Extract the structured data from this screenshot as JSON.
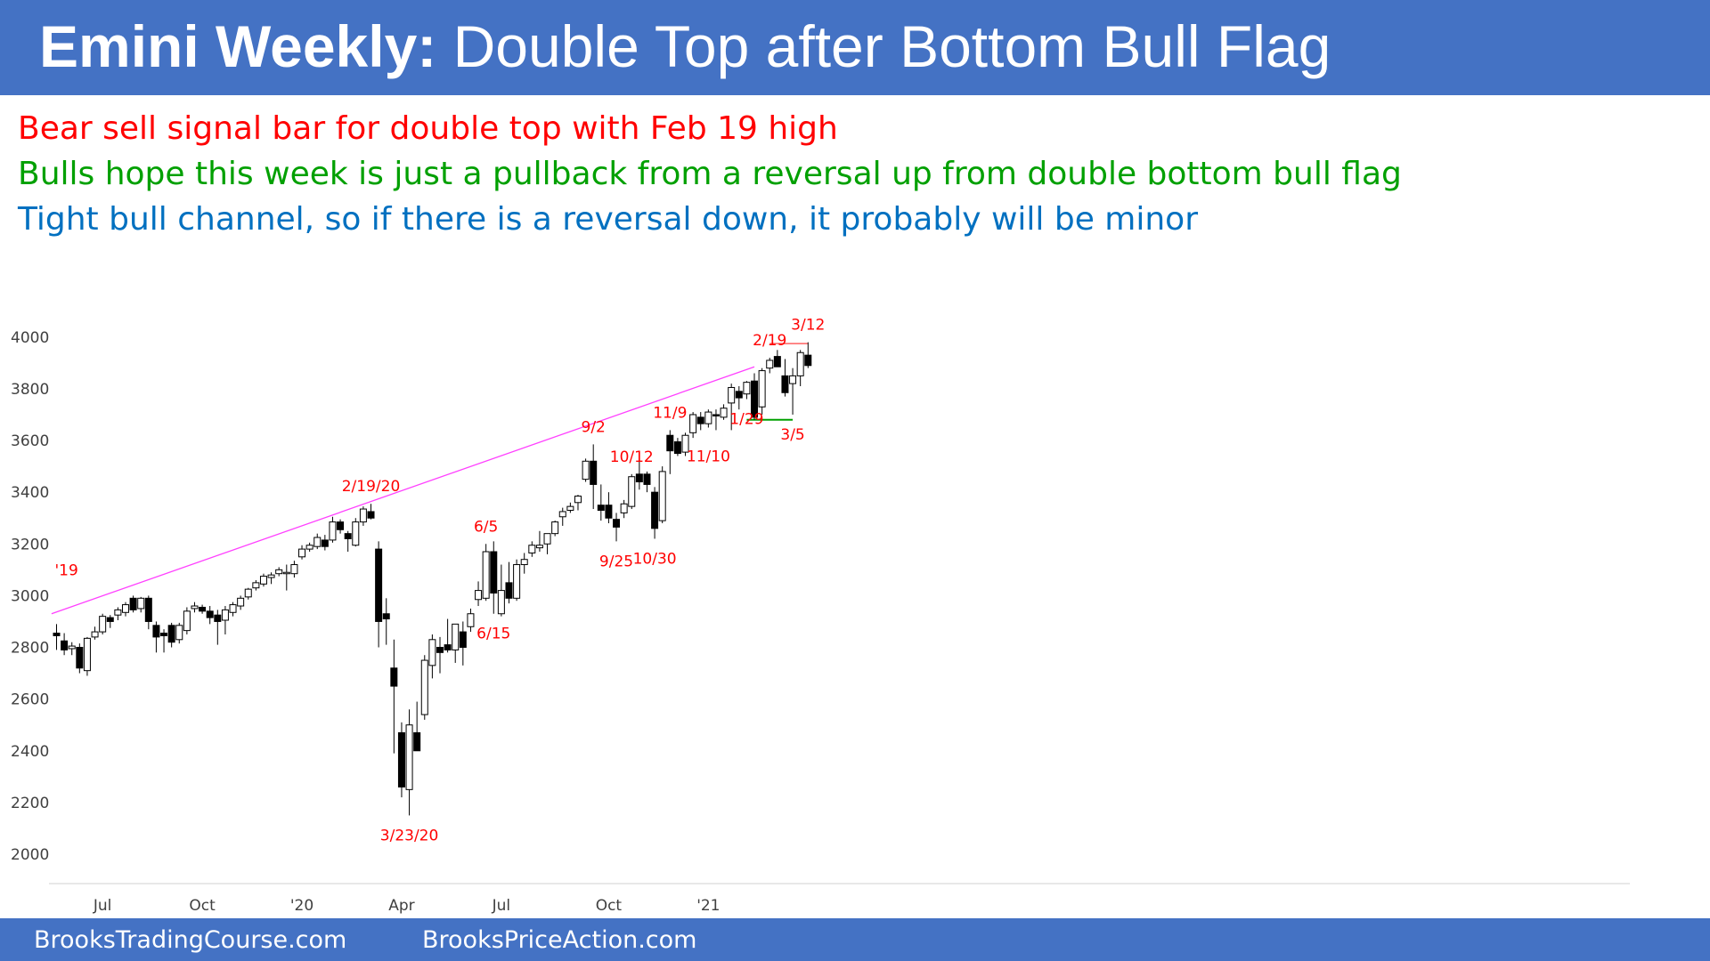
{
  "header": {
    "title_bold": "Emini Weekly:",
    "title_rest": "Double Top after Bottom Bull Flag",
    "bg_color": "#4472c4"
  },
  "notes": [
    {
      "text": "Bear sell signal bar for double top with Feb 19 high",
      "color": "#ff0000"
    },
    {
      "text": "Bulls hope this week is just a pullback from a reversal up from double bottom bull flag",
      "color": "#00a000"
    },
    {
      "text": "Tight bull channel, so if there is a reversal down, it probably will be minor",
      "color": "#0070c0"
    }
  ],
  "footer": {
    "left": "BrooksTradingCourse.com",
    "right": "BrooksPriceAction.com"
  },
  "chart_data": {
    "type": "candlestick",
    "title": "Emini Weekly",
    "xlabel": "",
    "ylabel": "",
    "ylim": [
      1950,
      4050
    ],
    "yticks": [
      2000,
      2200,
      2400,
      2600,
      2800,
      3000,
      3200,
      3400,
      3600,
      3800,
      4000
    ],
    "xticks": [
      {
        "label": "Jul",
        "bar": 6
      },
      {
        "label": "Oct",
        "bar": 19
      },
      {
        "label": "'20",
        "bar": 32
      },
      {
        "label": "Apr",
        "bar": 45
      },
      {
        "label": "Jul",
        "bar": 58
      },
      {
        "label": "Oct",
        "bar": 72
      },
      {
        "label": "'21",
        "bar": 85
      }
    ],
    "bars": [
      {
        "o": 2855,
        "h": 2890,
        "l": 2790,
        "c": 2845
      },
      {
        "o": 2825,
        "h": 2855,
        "l": 2770,
        "c": 2790
      },
      {
        "o": 2795,
        "h": 2820,
        "l": 2770,
        "c": 2805
      },
      {
        "o": 2800,
        "h": 2815,
        "l": 2700,
        "c": 2720
      },
      {
        "o": 2710,
        "h": 2840,
        "l": 2690,
        "c": 2835
      },
      {
        "o": 2840,
        "h": 2880,
        "l": 2830,
        "c": 2860
      },
      {
        "o": 2860,
        "h": 2930,
        "l": 2850,
        "c": 2920
      },
      {
        "o": 2915,
        "h": 2925,
        "l": 2875,
        "c": 2900
      },
      {
        "o": 2925,
        "h": 2955,
        "l": 2905,
        "c": 2945
      },
      {
        "o": 2935,
        "h": 2975,
        "l": 2920,
        "c": 2965
      },
      {
        "o": 2990,
        "h": 3000,
        "l": 2935,
        "c": 2945
      },
      {
        "o": 2950,
        "h": 2995,
        "l": 2935,
        "c": 2990
      },
      {
        "o": 2990,
        "h": 3000,
        "l": 2870,
        "c": 2900
      },
      {
        "o": 2885,
        "h": 2900,
        "l": 2780,
        "c": 2840
      },
      {
        "o": 2855,
        "h": 2870,
        "l": 2780,
        "c": 2845
      },
      {
        "o": 2885,
        "h": 2895,
        "l": 2800,
        "c": 2820
      },
      {
        "o": 2830,
        "h": 2895,
        "l": 2815,
        "c": 2885
      },
      {
        "o": 2865,
        "h": 2955,
        "l": 2850,
        "c": 2940
      },
      {
        "o": 2950,
        "h": 2975,
        "l": 2935,
        "c": 2960
      },
      {
        "o": 2955,
        "h": 2965,
        "l": 2930,
        "c": 2940
      },
      {
        "o": 2940,
        "h": 2960,
        "l": 2890,
        "c": 2915
      },
      {
        "o": 2925,
        "h": 2945,
        "l": 2810,
        "c": 2900
      },
      {
        "o": 2905,
        "h": 2960,
        "l": 2850,
        "c": 2945
      },
      {
        "o": 2935,
        "h": 2975,
        "l": 2920,
        "c": 2965
      },
      {
        "o": 2960,
        "h": 3000,
        "l": 2945,
        "c": 2990
      },
      {
        "o": 2995,
        "h": 3030,
        "l": 2985,
        "c": 3025
      },
      {
        "o": 3030,
        "h": 3060,
        "l": 3020,
        "c": 3050
      },
      {
        "o": 3045,
        "h": 3085,
        "l": 3035,
        "c": 3075
      },
      {
        "o": 3070,
        "h": 3090,
        "l": 3045,
        "c": 3080
      },
      {
        "o": 3085,
        "h": 3110,
        "l": 3075,
        "c": 3100
      },
      {
        "o": 3085,
        "h": 3120,
        "l": 3020,
        "c": 3090
      },
      {
        "o": 3085,
        "h": 3135,
        "l": 3070,
        "c": 3120
      },
      {
        "o": 3150,
        "h": 3195,
        "l": 3140,
        "c": 3180
      },
      {
        "o": 3180,
        "h": 3205,
        "l": 3170,
        "c": 3195
      },
      {
        "o": 3190,
        "h": 3240,
        "l": 3180,
        "c": 3225
      },
      {
        "o": 3215,
        "h": 3235,
        "l": 3175,
        "c": 3190
      },
      {
        "o": 3215,
        "h": 3305,
        "l": 3205,
        "c": 3285
      },
      {
        "o": 3285,
        "h": 3295,
        "l": 3240,
        "c": 3255
      },
      {
        "o": 3240,
        "h": 3250,
        "l": 3170,
        "c": 3220
      },
      {
        "o": 3195,
        "h": 3300,
        "l": 3190,
        "c": 3285
      },
      {
        "o": 3285,
        "h": 3345,
        "l": 3270,
        "c": 3335
      },
      {
        "o": 3325,
        "h": 3355,
        "l": 3295,
        "c": 3300
      },
      {
        "o": 3180,
        "h": 3210,
        "l": 2800,
        "c": 2900
      },
      {
        "o": 2930,
        "h": 2990,
        "l": 2810,
        "c": 2910
      },
      {
        "o": 2720,
        "h": 2830,
        "l": 2390,
        "c": 2650
      },
      {
        "o": 2470,
        "h": 2510,
        "l": 2220,
        "c": 2260
      },
      {
        "o": 2250,
        "h": 2560,
        "l": 2150,
        "c": 2500
      },
      {
        "o": 2470,
        "h": 2590,
        "l": 2400,
        "c": 2400
      },
      {
        "o": 2540,
        "h": 2770,
        "l": 2520,
        "c": 2750
      },
      {
        "o": 2730,
        "h": 2850,
        "l": 2680,
        "c": 2830
      },
      {
        "o": 2800,
        "h": 2840,
        "l": 2700,
        "c": 2780
      },
      {
        "o": 2810,
        "h": 2910,
        "l": 2780,
        "c": 2790
      },
      {
        "o": 2790,
        "h": 2880,
        "l": 2740,
        "c": 2890
      },
      {
        "o": 2860,
        "h": 2900,
        "l": 2730,
        "c": 2800
      },
      {
        "o": 2880,
        "h": 2950,
        "l": 2860,
        "c": 2930
      },
      {
        "o": 2985,
        "h": 3055,
        "l": 2960,
        "c": 3020
      },
      {
        "o": 2990,
        "h": 3200,
        "l": 2980,
        "c": 3170
      },
      {
        "o": 3170,
        "h": 3210,
        "l": 2930,
        "c": 3010
      },
      {
        "o": 2930,
        "h": 3120,
        "l": 2920,
        "c": 3020
      },
      {
        "o": 3050,
        "h": 3130,
        "l": 2970,
        "c": 2990
      },
      {
        "o": 2990,
        "h": 3140,
        "l": 2980,
        "c": 3120
      },
      {
        "o": 3120,
        "h": 3165,
        "l": 3085,
        "c": 3140
      },
      {
        "o": 3165,
        "h": 3210,
        "l": 3150,
        "c": 3195
      },
      {
        "o": 3185,
        "h": 3250,
        "l": 3170,
        "c": 3195
      },
      {
        "o": 3200,
        "h": 3235,
        "l": 3160,
        "c": 3240
      },
      {
        "o": 3240,
        "h": 3290,
        "l": 3230,
        "c": 3285
      },
      {
        "o": 3305,
        "h": 3340,
        "l": 3270,
        "c": 3325
      },
      {
        "o": 3330,
        "h": 3360,
        "l": 3320,
        "c": 3345
      },
      {
        "o": 3360,
        "h": 3390,
        "l": 3330,
        "c": 3385
      },
      {
        "o": 3450,
        "h": 3530,
        "l": 3440,
        "c": 3520
      },
      {
        "o": 3520,
        "h": 3585,
        "l": 3335,
        "c": 3430
      },
      {
        "o": 3350,
        "h": 3430,
        "l": 3290,
        "c": 3330
      },
      {
        "o": 3350,
        "h": 3400,
        "l": 3280,
        "c": 3300
      },
      {
        "o": 3295,
        "h": 3320,
        "l": 3210,
        "c": 3265
      },
      {
        "o": 3320,
        "h": 3370,
        "l": 3300,
        "c": 3355
      },
      {
        "o": 3345,
        "h": 3470,
        "l": 3335,
        "c": 3460
      },
      {
        "o": 3470,
        "h": 3540,
        "l": 3410,
        "c": 3440
      },
      {
        "o": 3470,
        "h": 3480,
        "l": 3400,
        "c": 3430
      },
      {
        "o": 3400,
        "h": 3420,
        "l": 3220,
        "c": 3260
      },
      {
        "o": 3290,
        "h": 3500,
        "l": 3280,
        "c": 3480
      },
      {
        "o": 3620,
        "h": 3640,
        "l": 3470,
        "c": 3560
      },
      {
        "o": 3595,
        "h": 3610,
        "l": 3540,
        "c": 3550
      },
      {
        "o": 3555,
        "h": 3630,
        "l": 3540,
        "c": 3620
      },
      {
        "o": 3630,
        "h": 3710,
        "l": 3610,
        "c": 3700
      },
      {
        "o": 3690,
        "h": 3710,
        "l": 3640,
        "c": 3665
      },
      {
        "o": 3665,
        "h": 3720,
        "l": 3650,
        "c": 3710
      },
      {
        "o": 3700,
        "h": 3720,
        "l": 3640,
        "c": 3695
      },
      {
        "o": 3690,
        "h": 3740,
        "l": 3680,
        "c": 3725
      },
      {
        "o": 3745,
        "h": 3820,
        "l": 3640,
        "c": 3805
      },
      {
        "o": 3790,
        "h": 3810,
        "l": 3720,
        "c": 3765
      },
      {
        "o": 3780,
        "h": 3830,
        "l": 3760,
        "c": 3825
      },
      {
        "o": 3830,
        "h": 3860,
        "l": 3680,
        "c": 3690
      },
      {
        "o": 3730,
        "h": 3880,
        "l": 3700,
        "c": 3870
      },
      {
        "o": 3880,
        "h": 3920,
        "l": 3860,
        "c": 3910
      },
      {
        "o": 3925,
        "h": 3950,
        "l": 3890,
        "c": 3885
      },
      {
        "o": 3850,
        "h": 3915,
        "l": 3770,
        "c": 3785
      },
      {
        "o": 3820,
        "h": 3880,
        "l": 3700,
        "c": 3850
      },
      {
        "o": 3850,
        "h": 3950,
        "l": 3810,
        "c": 3940
      },
      {
        "o": 3930,
        "h": 3980,
        "l": 3880,
        "c": 3890
      }
    ],
    "annotations": [
      {
        "label": "'19",
        "bar": 0,
        "pos": "above-left"
      },
      {
        "label": "2/19/20",
        "bar": 41,
        "pos": "above"
      },
      {
        "label": "3/23/20",
        "bar": 46,
        "pos": "below"
      },
      {
        "label": "6/5",
        "bar": 56,
        "pos": "above"
      },
      {
        "label": "6/15",
        "bar": 57,
        "pos": "below"
      },
      {
        "label": "9/2",
        "bar": 70,
        "pos": "above"
      },
      {
        "label": "9/25",
        "bar": 73,
        "pos": "below"
      },
      {
        "label": "10/12",
        "bar": 75,
        "pos": "above"
      },
      {
        "label": "10/30",
        "bar": 78,
        "pos": "below"
      },
      {
        "label": "11/9",
        "bar": 80,
        "pos": "above"
      },
      {
        "label": "11/10",
        "bar": 81,
        "pos": "right"
      },
      {
        "label": "1/29",
        "bar": 90,
        "pos": "below"
      },
      {
        "label": "3/5",
        "bar": 96,
        "pos": "below"
      },
      {
        "label": "2/19",
        "bar": 93,
        "pos": "above"
      },
      {
        "label": "3/12",
        "bar": 98,
        "pos": "above"
      }
    ],
    "trendline": {
      "from": {
        "bar": -1,
        "price": 2930
      },
      "to": {
        "bar": 91,
        "price": 3885
      },
      "color": "#ff40ff"
    },
    "support_line": {
      "from_bar": 90,
      "to_bar": 96,
      "price": 3680,
      "color": "#00a000"
    },
    "resistance_line": {
      "from_bar": 93,
      "to_bar": 98,
      "price": 3975,
      "color": "#ff6060"
    },
    "annotation_color": "#ff0000",
    "grid": false,
    "legend": "none"
  }
}
